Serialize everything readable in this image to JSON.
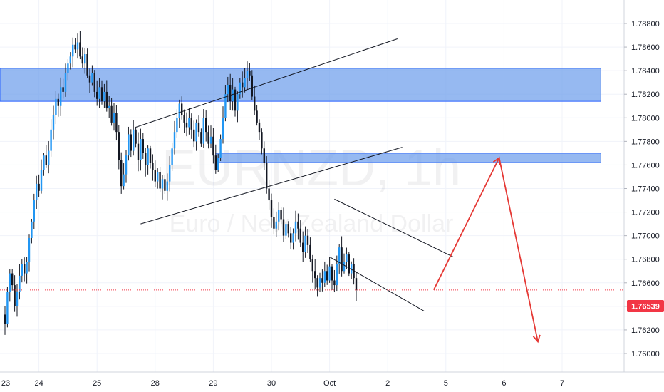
{
  "watermark": {
    "symbol": "EURNZD, 1h",
    "description": "Euro / New Zealand Dollar"
  },
  "last_price": {
    "value": 1.76539,
    "label": "1.76539",
    "color": "#f23645"
  },
  "colors": {
    "bull": "#2196f3",
    "bear": "#131722",
    "zone_fill": "#6d9eeb",
    "zone_stroke": "#2962ff",
    "projection": "#e53935",
    "trendline": "#131722"
  },
  "chart_data": {
    "type": "candlestick",
    "timeframe": "1h",
    "ylim": [
      1.76,
      1.79
    ],
    "y_ticks": [
      {
        "value": 1.788,
        "label": "1.78800"
      },
      {
        "value": 1.786,
        "label": "1.78600"
      },
      {
        "value": 1.784,
        "label": "1.78400"
      },
      {
        "value": 1.782,
        "label": "1.78200"
      },
      {
        "value": 1.78,
        "label": "1.78000"
      },
      {
        "value": 1.778,
        "label": "1.77800"
      },
      {
        "value": 1.776,
        "label": "1.77600"
      },
      {
        "value": 1.774,
        "label": "1.77400"
      },
      {
        "value": 1.772,
        "label": "1.77200"
      },
      {
        "value": 1.77,
        "label": "1.77000"
      },
      {
        "value": 1.768,
        "label": "1.76800"
      },
      {
        "value": 1.766,
        "label": "1.76600"
      },
      {
        "value": 1.764,
        "label": "1.76400"
      },
      {
        "value": 1.762,
        "label": "1.76200"
      },
      {
        "value": 1.76,
        "label": "1.76000"
      }
    ],
    "x_ticks": [
      {
        "bar": -10,
        "label": "23"
      },
      {
        "bar": 14,
        "label": "24"
      },
      {
        "bar": 38,
        "label": "25"
      },
      {
        "bar": 62,
        "label": "28"
      },
      {
        "bar": 86,
        "label": "29"
      },
      {
        "bar": 110,
        "label": "30"
      },
      {
        "bar": 134,
        "label": "Oct"
      },
      {
        "bar": 158,
        "label": "2"
      },
      {
        "bar": 182,
        "label": "5"
      },
      {
        "bar": 206,
        "label": "6"
      },
      {
        "bar": 230,
        "label": "7"
      }
    ],
    "closes": [
      1.7625,
      1.7652,
      1.7668,
      1.7658,
      1.764,
      1.7652,
      1.7666,
      1.7676,
      1.7668,
      1.7678,
      1.7698,
      1.7712,
      1.773,
      1.7744,
      1.7738,
      1.7756,
      1.7768,
      1.776,
      1.7772,
      1.779,
      1.7802,
      1.7816,
      1.781,
      1.7826,
      1.7822,
      1.7838,
      1.7846,
      1.7852,
      1.7862,
      1.7858,
      1.7864,
      1.7852,
      1.7846,
      1.7854,
      1.7836,
      1.783,
      1.7838,
      1.7822,
      1.7816,
      1.7826,
      1.7814,
      1.7822,
      1.7808,
      1.781,
      1.7796,
      1.7804,
      1.7788,
      1.7764,
      1.7742,
      1.7752,
      1.7768,
      1.7786,
      1.7772,
      1.779,
      1.7778,
      1.7764,
      1.7782,
      1.777,
      1.776,
      1.7774,
      1.7762,
      1.7756,
      1.7746,
      1.7754,
      1.774,
      1.7748,
      1.7738,
      1.7746,
      1.776,
      1.7774,
      1.7788,
      1.78,
      1.7812,
      1.7802,
      1.7796,
      1.7792,
      1.78,
      1.779,
      1.778,
      1.7796,
      1.7788,
      1.7778,
      1.78,
      1.7788,
      1.7778,
      1.7784,
      1.7768,
      1.7756,
      1.7766,
      1.7782,
      1.78,
      1.782,
      1.7828,
      1.7814,
      1.7824,
      1.7806,
      1.782,
      1.783,
      1.7826,
      1.7834,
      1.784,
      1.7836,
      1.7818,
      1.7806,
      1.7796,
      1.7788,
      1.7774,
      1.7762,
      1.774,
      1.773,
      1.7716,
      1.7706,
      1.7712,
      1.7722,
      1.7714,
      1.77,
      1.771,
      1.7702,
      1.7694,
      1.7702,
      1.7712,
      1.7706,
      1.7694,
      1.7686,
      1.77,
      1.7692,
      1.768,
      1.767,
      1.7664,
      1.7656,
      1.7664,
      1.766,
      1.767,
      1.7662,
      1.7674,
      1.7662,
      1.7658,
      1.7676,
      1.769,
      1.767,
      1.7678,
      1.7684,
      1.7668,
      1.7676,
      1.7664,
      1.7654
    ],
    "annotations": {
      "resistance_zone": {
        "top": 1.7842,
        "bottom": 1.7814,
        "start_bar": -13,
        "end_bar": 246
      },
      "supply_zone": {
        "top": 1.777,
        "bottom": 1.7762,
        "start_bar": 87,
        "end_bar": 246
      },
      "wedge_upper": {
        "x1": 54,
        "y1": 1.7792,
        "x2": 162,
        "y2": 1.7867
      },
      "wedge_lower": {
        "x1": 56,
        "y1": 1.771,
        "x2": 164,
        "y2": 1.7775
      },
      "channel_upper": {
        "x1": 136,
        "y1": 1.7731,
        "x2": 185,
        "y2": 1.7682
      },
      "channel_lower": {
        "x1": 134,
        "y1": 1.7682,
        "x2": 173,
        "y2": 1.7636
      },
      "projection_path": [
        {
          "bar": 177,
          "price": 1.7654
        },
        {
          "bar": 204,
          "price": 1.7766
        },
        {
          "bar": 220,
          "price": 1.761
        }
      ]
    }
  }
}
